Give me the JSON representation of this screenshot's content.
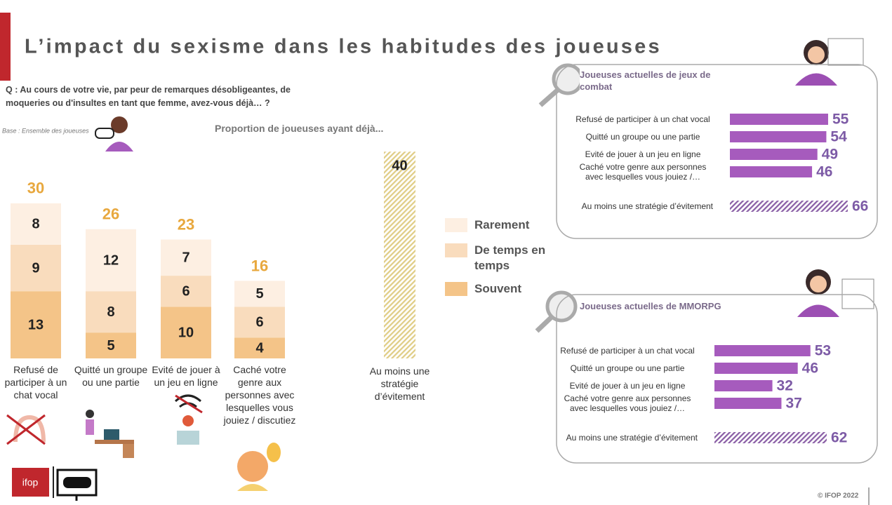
{
  "title": "L’impact du sexisme dans les habitudes des joueuses",
  "question": "Q : Au cours de votre vie, par peur de remarques désobligeantes, de moqueries ou d'insultes en tant que femme, avez-vous déjà… ?",
  "base": "Base : Ensemble des joueuses",
  "footer": "© IFOP 2022",
  "logo": "ifop",
  "chart_data": [
    {
      "type": "stacked-bar",
      "subtitle": "Proportion de joueuses ayant déjà...",
      "categories": [
        "Refusé de participer à un chat vocal",
        "Quitté un groupe ou une partie",
        "Evité de jouer à un jeu en ligne",
        "Caché votre genre aux personnes avec lesquelles vous jouiez / discutiez"
      ],
      "series": [
        {
          "name": "Souvent",
          "color": "#f4c488",
          "values": [
            13,
            5,
            10,
            4
          ]
        },
        {
          "name": "De temps en temps",
          "color": "#f9dcbd",
          "values": [
            9,
            8,
            6,
            6
          ]
        },
        {
          "name": "Rarement",
          "color": "#fdefe2",
          "values": [
            8,
            12,
            7,
            5
          ]
        }
      ],
      "totals": [
        30,
        26,
        23,
        16
      ],
      "total_color": "#e8a83e"
    },
    {
      "type": "bar",
      "categories": [
        "Au moins une stratégie d’évitement"
      ],
      "values": [
        40
      ],
      "color": "#e0cd86",
      "hatched": true
    },
    {
      "type": "hbar",
      "title": "Joueuses actuelles de jeux de combat",
      "categories": [
        "Refusé de participer à un chat vocal",
        "Quitté un groupe ou une partie",
        "Evité de jouer à un jeu en ligne",
        "Caché votre genre aux personnes avec lesquelles vous jouiez /…"
      ],
      "values": [
        55,
        54,
        49,
        46
      ],
      "color": "#a65bbd",
      "summary": {
        "label": "Au moins une stratégie d’évitement",
        "value": 66,
        "color": "#8a5fa6",
        "hatched": true
      }
    },
    {
      "type": "hbar",
      "title": "Joueuses actuelles de MMORPG",
      "categories": [
        "Refusé de participer à un chat vocal",
        "Quitté un groupe ou une partie",
        "Evité de jouer à un jeu en ligne",
        "Caché votre genre aux personnes avec lesquelles vous jouiez /…"
      ],
      "values": [
        53,
        46,
        32,
        37
      ],
      "color": "#a65bbd",
      "summary": {
        "label": "Au moins une stratégie d’évitement",
        "value": 62,
        "color": "#8a5fa6",
        "hatched": true
      }
    }
  ]
}
